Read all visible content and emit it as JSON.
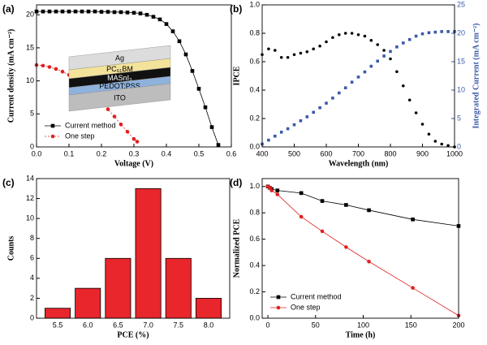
{
  "chart_data": [
    {
      "type": "line",
      "panel_label": "(a)",
      "x_label": "Voltage (V)",
      "y_label": "Current density (mA cm⁻²)",
      "xlim": [
        0,
        0.6
      ],
      "xticks": [
        {
          "value": 0,
          "label": "0.0"
        },
        0.1,
        0.2,
        0.3,
        0.4,
        0.5,
        0.6
      ],
      "ylim": [
        0,
        21.5
      ],
      "yticks": [
        0,
        5,
        10,
        15,
        20
      ],
      "legend": "lower left",
      "inset": [
        "Ag",
        "PC₆₁BM",
        "MASnI₃",
        "PEDOT:PSS",
        "ITO"
      ],
      "series": [
        {
          "name": "Current method",
          "color": "#000000",
          "marker": "square",
          "dash": false,
          "x": [
            0,
            0.02,
            0.04,
            0.06,
            0.08,
            0.1,
            0.12,
            0.14,
            0.16,
            0.18,
            0.2,
            0.22,
            0.24,
            0.26,
            0.28,
            0.3,
            0.32,
            0.34,
            0.36,
            0.38,
            0.4,
            0.42,
            0.44,
            0.46,
            0.48,
            0.5,
            0.52,
            0.54,
            0.56
          ],
          "values": [
            20.5,
            20.5,
            20.5,
            20.5,
            20.5,
            20.5,
            20.5,
            20.5,
            20.5,
            20.5,
            20.45,
            20.45,
            20.4,
            20.4,
            20.35,
            20.3,
            20.2,
            20.0,
            19.7,
            19.3,
            18.6,
            17.5,
            16.0,
            14.0,
            11.5,
            8.8,
            6.0,
            3.0,
            0.3
          ]
        },
        {
          "name": "One step",
          "color": "#e02020",
          "marker": "circle",
          "dash": true,
          "x": [
            0,
            0.02,
            0.04,
            0.06,
            0.08,
            0.1,
            0.12,
            0.14,
            0.16,
            0.18,
            0.2,
            0.22,
            0.24,
            0.26,
            0.28,
            0.3,
            0.31
          ],
          "values": [
            12.4,
            12.3,
            12.1,
            11.8,
            11.4,
            10.9,
            10.2,
            9.5,
            8.7,
            7.8,
            6.8,
            5.7,
            4.6,
            3.4,
            2.3,
            1.2,
            0.8
          ]
        }
      ]
    },
    {
      "type": "line",
      "panel_label": "(b)",
      "x_label": "Wavelength (nm)",
      "y_label": "IPCE",
      "y2_label": "Integrated Current (mA cm⁻²)",
      "xlim": [
        400,
        1000
      ],
      "xticks": [
        400,
        500,
        600,
        700,
        800,
        900,
        1000
      ],
      "ylim": [
        0,
        1.0
      ],
      "yticks": [
        {
          "value": 0,
          "label": "0.0"
        },
        0.2,
        0.4,
        0.6,
        0.8,
        {
          "value": 1,
          "label": "1.0"
        }
      ],
      "y2lim": [
        0,
        25
      ],
      "y2ticks": [
        0,
        5,
        10,
        15,
        20,
        25
      ],
      "x": [
        400,
        420,
        440,
        460,
        480,
        500,
        520,
        540,
        560,
        580,
        600,
        620,
        640,
        660,
        680,
        700,
        720,
        740,
        760,
        780,
        800,
        820,
        840,
        860,
        880,
        900,
        920,
        940,
        960,
        980,
        1000
      ],
      "series": [
        {
          "name": "IPCE",
          "color": "#000000",
          "marker": "circle",
          "axis": "y",
          "values": [
            0.65,
            0.69,
            0.68,
            0.63,
            0.63,
            0.65,
            0.66,
            0.67,
            0.69,
            0.71,
            0.74,
            0.77,
            0.79,
            0.8,
            0.8,
            0.79,
            0.78,
            0.75,
            0.72,
            0.68,
            0.62,
            0.53,
            0.43,
            0.33,
            0.24,
            0.16,
            0.09,
            0.04,
            0.02,
            0.01,
            0
          ]
        },
        {
          "name": "Integrated Current",
          "color": "#3a5ba8",
          "marker": "square",
          "axis": "y2",
          "values": [
            0.5,
            1.2,
            1.9,
            2.6,
            3.2,
            3.9,
            4.6,
            5.3,
            6.1,
            6.9,
            7.7,
            8.6,
            9.5,
            10.4,
            11.4,
            12.3,
            13.2,
            14.2,
            15.1,
            16.0,
            16.8,
            17.6,
            18.3,
            18.9,
            19.5,
            19.9,
            20.1,
            20.2,
            20.3,
            20.3,
            20.3
          ]
        }
      ]
    },
    {
      "type": "bar",
      "panel_label": "(c)",
      "x_label": "PCE (%)",
      "y_label": "Counts",
      "color": "#e8262b",
      "categories": [
        "5.5",
        "6.0",
        "6.5",
        "7.0",
        "7.5",
        "8.0"
      ],
      "values": [
        1,
        3,
        6,
        13,
        6,
        2
      ],
      "ylim": [
        0,
        14
      ],
      "yticks": [
        0,
        2,
        4,
        6,
        8,
        10,
        12,
        14
      ]
    },
    {
      "type": "line",
      "panel_label": "(d)",
      "x_label": "Time (h)",
      "y_label": "Normalized PCE",
      "xlim": [
        -6,
        200
      ],
      "xticks": [
        0,
        50,
        100,
        150,
        200
      ],
      "ylim": [
        0,
        1.06
      ],
      "yticks": [
        {
          "value": 0,
          "label": "0.0"
        },
        0.2,
        0.4,
        0.6,
        0.8,
        {
          "value": 1,
          "label": "1.0"
        }
      ],
      "legend": "lower left",
      "x": [
        0,
        2,
        4,
        10,
        35,
        57,
        82,
        106,
        152,
        200
      ],
      "series": [
        {
          "name": "Current method",
          "color": "#000000",
          "marker": "square",
          "dash": false,
          "values": [
            1,
            0.99,
            0.98,
            0.97,
            0.95,
            0.89,
            0.86,
            0.82,
            0.75,
            0.7
          ]
        },
        {
          "name": "One step",
          "color": "#e02020",
          "marker": "circle",
          "dash": false,
          "values": [
            1,
            0.99,
            0.97,
            0.94,
            0.77,
            0.66,
            0.54,
            0.43,
            0.23,
            0.02
          ]
        }
      ]
    }
  ]
}
